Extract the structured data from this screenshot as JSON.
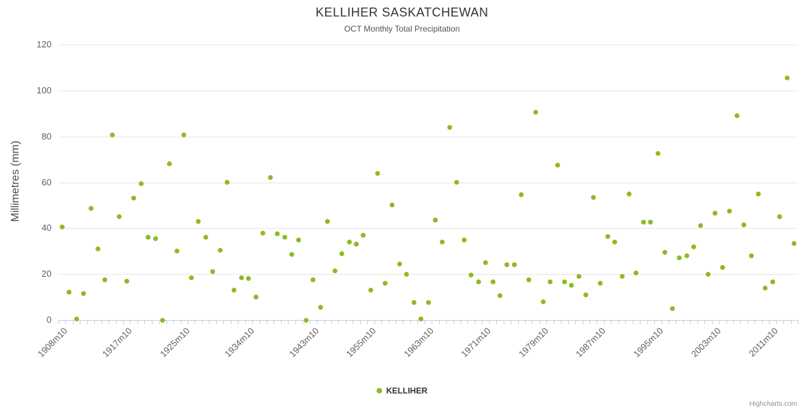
{
  "chart_data": {
    "type": "scatter",
    "title": "KELLIHER SASKATCHEWAN",
    "subtitle": "OCT Monthly Total Precipitation",
    "ylabel": "Millimetres (mm)",
    "ylim": [
      0,
      120
    ],
    "ytick_interval": 20,
    "ytick_labels": [
      "0",
      "20",
      "40",
      "60",
      "80",
      "100",
      "120"
    ],
    "grid": true,
    "legend_position": "bottom",
    "credits": "Highcharts.com",
    "xtick_labels": [
      "1908m10",
      "1917m10",
      "1925m10",
      "1934m10",
      "1943m10",
      "1955m10",
      "1963m10",
      "1971m10",
      "1979m10",
      "1987m10",
      "1995m10",
      "2003m10",
      "2011m10"
    ],
    "series": [
      {
        "name": "KELLIHER",
        "color": "#8bbc21",
        "points": [
          [
            "1908m10",
            40.5
          ],
          [
            "1909m10",
            12
          ],
          [
            "1910m10",
            0.5
          ],
          [
            "1911m10",
            11.5
          ],
          [
            "1912m10",
            48.5
          ],
          [
            "1913m10",
            31
          ],
          [
            "1914m10",
            17.5
          ],
          [
            "1915m10",
            80.5
          ],
          [
            "1916m10",
            45
          ],
          [
            "1917m10",
            17
          ],
          [
            "1918m10",
            53
          ],
          [
            "1919m10",
            59.5
          ],
          [
            "1920m10",
            36
          ],
          [
            "1921m10",
            35.5
          ],
          [
            "1922m10",
            0
          ],
          [
            "1923m10",
            68
          ],
          [
            "1924m10",
            30
          ],
          [
            "1925m10",
            80.5
          ],
          [
            "1926m10",
            18.5
          ],
          [
            "1927m10",
            43
          ],
          [
            "1928m10",
            36
          ],
          [
            "1929m10",
            21
          ],
          [
            "1930m10",
            30.5
          ],
          [
            "1931m10",
            60
          ],
          [
            "1932m10",
            13
          ],
          [
            "1933m10",
            18.5
          ],
          [
            "1934m10",
            18
          ],
          [
            "1935m10",
            10
          ],
          [
            "1936m10",
            38
          ],
          [
            "1937m10",
            62
          ],
          [
            "1938m10",
            37.5
          ],
          [
            "1939m10",
            36
          ],
          [
            "1940m10",
            28.5
          ],
          [
            "1941m10",
            35
          ],
          [
            "1942m10",
            0
          ],
          [
            "1943m10",
            17.5
          ],
          [
            "1944m10",
            5.5
          ],
          [
            "1945m10",
            43
          ],
          [
            "1946m10",
            21.5
          ],
          [
            "1948m10",
            29
          ],
          [
            "1951m10",
            34
          ],
          [
            "1952m10",
            33
          ],
          [
            "1954m10",
            37
          ],
          [
            "1955m10",
            13
          ],
          [
            "1956m10",
            64
          ],
          [
            "1957m10",
            16
          ],
          [
            "1958m10",
            50
          ],
          [
            "1959m10",
            24.5
          ],
          [
            "1960m10",
            20
          ],
          [
            "1961m10",
            7.5
          ],
          [
            "1962m10",
            0.5
          ],
          [
            "1963m10",
            7.5
          ],
          [
            "1964m10",
            43.5
          ],
          [
            "1965m10",
            34
          ],
          [
            "1966m10",
            84
          ],
          [
            "1967m10",
            60
          ],
          [
            "1968m10",
            35
          ],
          [
            "1969m10",
            19.5
          ],
          [
            "1970m10",
            16.5
          ],
          [
            "1971m10",
            25
          ],
          [
            "1972m10",
            16.5
          ],
          [
            "1973m10",
            10.5
          ],
          [
            "1974m10",
            24
          ],
          [
            "1975m10",
            24
          ],
          [
            "1976m10",
            54.5
          ],
          [
            "1977m10",
            17.5
          ],
          [
            "1978m10",
            90.5
          ],
          [
            "1979m10",
            8
          ],
          [
            "1980m10",
            16.5
          ],
          [
            "1981m10",
            67.5
          ],
          [
            "1982m10",
            16.5
          ],
          [
            "1983m10",
            15
          ],
          [
            "1984m10",
            19
          ],
          [
            "1985m10",
            11
          ],
          [
            "1986m10",
            53.5
          ],
          [
            "1987m10",
            16
          ],
          [
            "1988m10",
            36.5
          ],
          [
            "1989m10",
            34
          ],
          [
            "1990m10",
            19
          ],
          [
            "1991m10",
            55
          ],
          [
            "1992m10",
            20.5
          ],
          [
            "1993m10",
            42.5
          ],
          [
            "1994m10",
            42.5
          ],
          [
            "1995m10",
            72.5
          ],
          [
            "1996m10",
            29.5
          ],
          [
            "1997m10",
            5
          ],
          [
            "1998m10",
            27
          ],
          [
            "1999m10",
            28
          ],
          [
            "2000m10",
            32
          ],
          [
            "2001m10",
            41
          ],
          [
            "2002m10",
            20
          ],
          [
            "2003m10",
            46.5
          ],
          [
            "2004m10",
            23
          ],
          [
            "2005m10",
            47.5
          ],
          [
            "2006m10",
            89
          ],
          [
            "2007m10",
            41.5
          ],
          [
            "2008m10",
            28
          ],
          [
            "2009m10",
            55
          ],
          [
            "2010m10",
            14
          ],
          [
            "2011m10",
            16.5
          ],
          [
            "2012m10",
            45
          ],
          [
            "2014m10",
            105.5
          ],
          [
            "2015m10",
            33.5
          ]
        ]
      }
    ]
  }
}
